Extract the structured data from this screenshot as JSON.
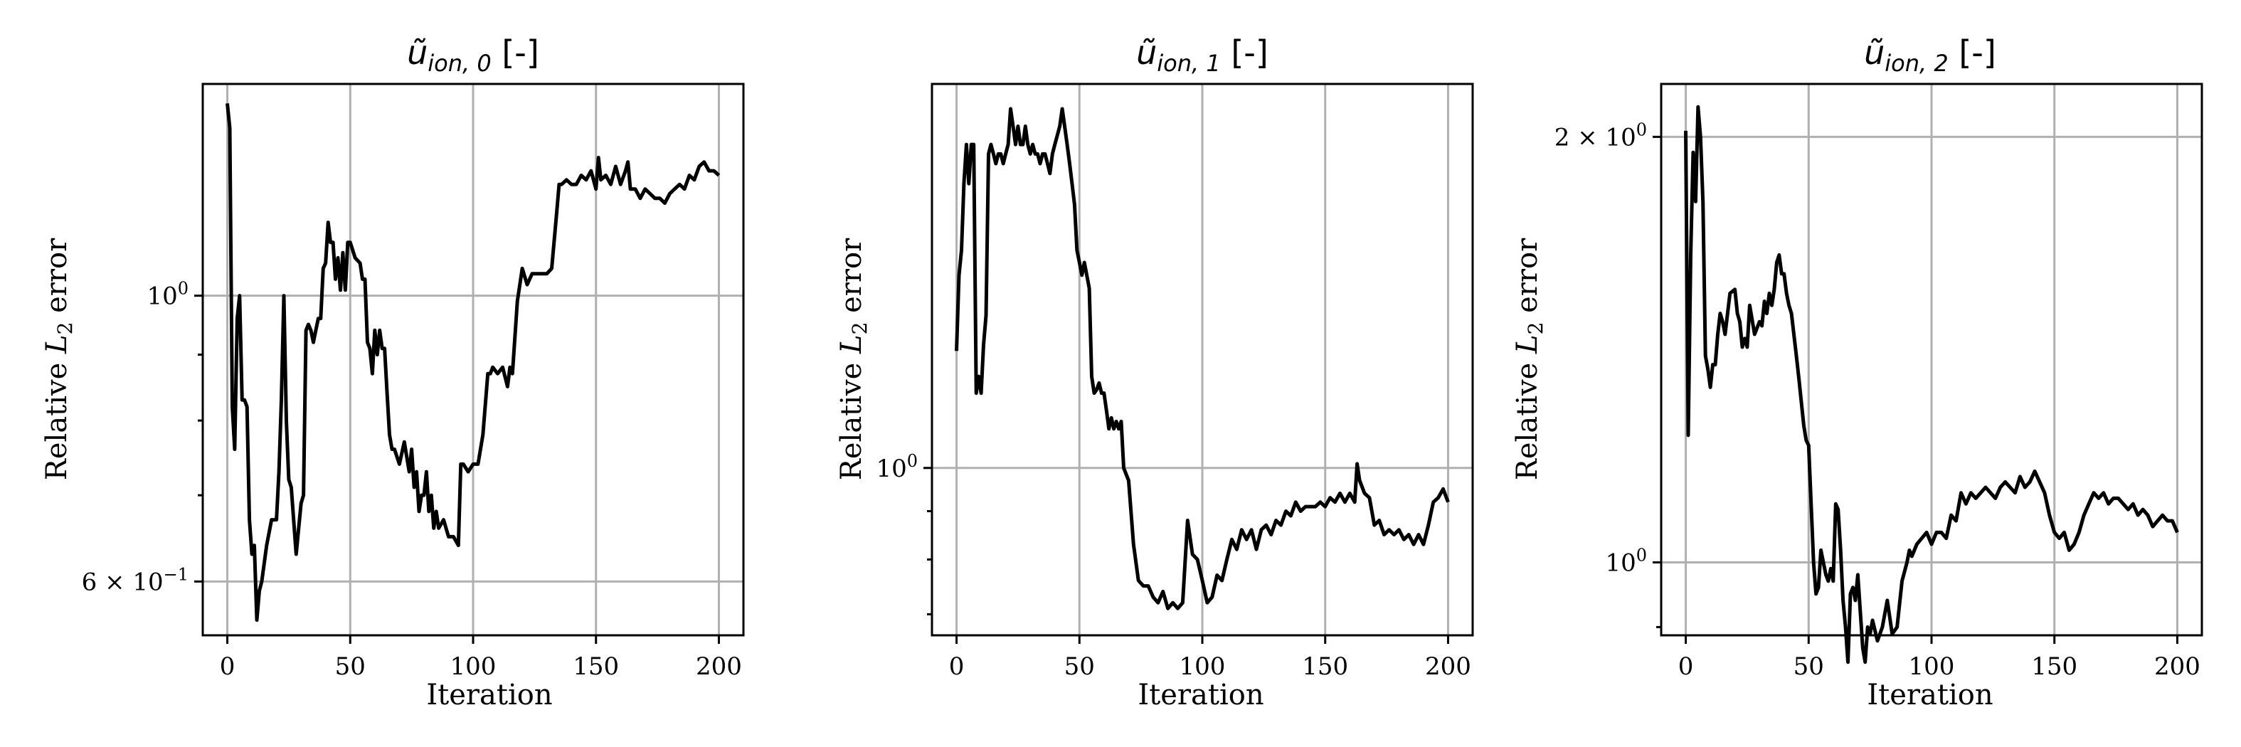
{
  "chart_data": [
    {
      "type": "line",
      "title_main": "ũ",
      "title_sub": "ion, 0",
      "title_suffix": " [-]",
      "xlabel": "Iteration",
      "ylabel_main": "Relative ",
      "ylabel_var": "L",
      "ylabel_sub": "2",
      "ylabel_suffix": " error",
      "yscale": "log",
      "xlim": [
        -10,
        210
      ],
      "ylim": [
        0.545,
        1.46
      ],
      "x_ticks": [
        0,
        50,
        100,
        150,
        200
      ],
      "x_tick_labels": [
        "0",
        "50",
        "100",
        "150",
        "200"
      ],
      "y_major_ticks": [
        {
          "value": 1.0,
          "base": "10",
          "exp": "0"
        },
        {
          "value": 0.6,
          "base": "6 × 10",
          "exp": "−1"
        }
      ],
      "y_minor_ticks": [
        0.7,
        0.8,
        0.9
      ],
      "series": [
        {
          "name": "relative_error",
          "x": [
            0,
            1,
            2,
            3,
            4,
            5,
            6,
            7,
            8,
            9,
            10,
            11,
            12,
            13,
            14,
            16,
            18,
            20,
            21,
            22,
            23,
            24,
            25,
            26,
            28,
            30,
            31,
            32,
            33,
            34,
            35,
            36,
            37,
            38,
            39,
            40,
            41,
            42,
            43,
            44,
            45,
            46,
            47,
            48,
            49,
            50,
            52,
            54,
            55,
            56,
            57,
            58,
            59,
            60,
            61,
            62,
            63,
            64,
            65,
            66,
            67,
            68,
            70,
            72,
            74,
            75,
            76,
            77,
            78,
            79,
            80,
            81,
            82,
            83,
            84,
            85,
            86,
            88,
            90,
            92,
            94,
            95,
            96,
            98,
            100,
            102,
            104,
            106,
            107,
            108,
            110,
            112,
            114,
            115,
            116,
            118,
            120,
            122,
            124,
            126,
            128,
            130,
            132,
            134,
            135,
            136,
            138,
            140,
            142,
            144,
            146,
            148,
            150,
            151,
            152,
            154,
            156,
            158,
            160,
            162,
            163,
            164,
            166,
            168,
            170,
            172,
            174,
            176,
            178,
            180,
            182,
            184,
            186,
            188,
            190,
            192,
            194,
            196,
            198,
            200
          ],
          "values": [
            1.41,
            1.35,
            0.82,
            0.76,
            0.96,
            1.0,
            0.83,
            0.83,
            0.82,
            0.67,
            0.63,
            0.64,
            0.56,
            0.59,
            0.6,
            0.64,
            0.67,
            0.67,
            0.73,
            0.83,
            1.0,
            0.8,
            0.72,
            0.71,
            0.63,
            0.69,
            0.7,
            0.94,
            0.95,
            0.94,
            0.92,
            0.94,
            0.96,
            0.96,
            1.05,
            1.06,
            1.14,
            1.1,
            1.1,
            1.03,
            1.07,
            1.01,
            1.08,
            1.01,
            1.1,
            1.1,
            1.07,
            1.06,
            1.03,
            1.03,
            0.92,
            0.91,
            0.87,
            0.94,
            0.9,
            0.94,
            0.91,
            0.91,
            0.84,
            0.78,
            0.76,
            0.76,
            0.74,
            0.77,
            0.73,
            0.76,
            0.71,
            0.73,
            0.68,
            0.7,
            0.7,
            0.73,
            0.68,
            0.7,
            0.66,
            0.68,
            0.66,
            0.67,
            0.65,
            0.65,
            0.64,
            0.74,
            0.74,
            0.73,
            0.74,
            0.74,
            0.78,
            0.87,
            0.87,
            0.88,
            0.87,
            0.88,
            0.85,
            0.88,
            0.87,
            0.99,
            1.05,
            1.02,
            1.04,
            1.04,
            1.04,
            1.04,
            1.05,
            1.16,
            1.22,
            1.22,
            1.23,
            1.22,
            1.22,
            1.24,
            1.23,
            1.25,
            1.21,
            1.28,
            1.23,
            1.24,
            1.22,
            1.26,
            1.22,
            1.25,
            1.27,
            1.21,
            1.21,
            1.19,
            1.21,
            1.2,
            1.19,
            1.19,
            1.18,
            1.2,
            1.21,
            1.22,
            1.21,
            1.24,
            1.23,
            1.26,
            1.27,
            1.25,
            1.25,
            1.24
          ]
        }
      ]
    },
    {
      "type": "line",
      "title_main": "ũ",
      "title_sub": "ion, 1",
      "title_suffix": " [-]",
      "xlabel": "Iteration",
      "ylabel_main": "Relative ",
      "ylabel_var": "L",
      "ylabel_sub": "2",
      "ylabel_suffix": " error",
      "yscale": "log",
      "xlim": [
        -10,
        210
      ],
      "ylim": [
        0.665,
        2.55
      ],
      "x_ticks": [
        0,
        50,
        100,
        150,
        200
      ],
      "x_tick_labels": [
        "0",
        "50",
        "100",
        "150",
        "200"
      ],
      "y_major_ticks": [
        {
          "value": 1.0,
          "base": "10",
          "exp": "0"
        }
      ],
      "y_minor_ticks": [
        0.7,
        0.8,
        0.9
      ],
      "series": [
        {
          "name": "relative_error",
          "x": [
            0,
            1,
            2,
            3,
            4,
            5,
            6,
            7,
            8,
            9,
            10,
            11,
            12,
            13,
            14,
            15,
            16,
            17,
            18,
            19,
            20,
            21,
            22,
            23,
            24,
            25,
            26,
            27,
            28,
            29,
            30,
            31,
            32,
            33,
            34,
            35,
            36,
            37,
            38,
            39,
            40,
            41,
            42,
            43,
            44,
            45,
            46,
            47,
            48,
            49,
            50,
            51,
            52,
            53,
            54,
            55,
            56,
            57,
            58,
            59,
            60,
            61,
            62,
            63,
            64,
            65,
            66,
            67,
            68,
            70,
            72,
            74,
            76,
            78,
            80,
            82,
            84,
            86,
            88,
            90,
            92,
            94,
            96,
            98,
            100,
            102,
            104,
            106,
            108,
            110,
            112,
            114,
            116,
            118,
            120,
            122,
            124,
            126,
            128,
            130,
            132,
            134,
            136,
            138,
            140,
            142,
            144,
            146,
            148,
            150,
            152,
            154,
            156,
            158,
            160,
            162,
            163,
            164,
            166,
            168,
            170,
            172,
            174,
            176,
            178,
            180,
            182,
            184,
            186,
            188,
            190,
            192,
            194,
            196,
            198,
            200
          ],
          "values": [
            1.33,
            1.6,
            1.7,
            2.0,
            2.2,
            2.0,
            2.2,
            2.2,
            1.2,
            1.25,
            1.2,
            1.35,
            1.45,
            2.15,
            2.2,
            2.15,
            2.1,
            2.15,
            2.15,
            2.1,
            2.15,
            2.2,
            2.4,
            2.3,
            2.2,
            2.3,
            2.2,
            2.2,
            2.3,
            2.2,
            2.15,
            2.2,
            2.15,
            2.15,
            2.1,
            2.15,
            2.15,
            2.1,
            2.05,
            2.15,
            2.2,
            2.25,
            2.3,
            2.4,
            2.3,
            2.2,
            2.1,
            2.0,
            1.9,
            1.7,
            1.65,
            1.6,
            1.65,
            1.6,
            1.55,
            1.25,
            1.2,
            1.21,
            1.23,
            1.2,
            1.2,
            1.15,
            1.1,
            1.13,
            1.1,
            1.12,
            1.1,
            1.12,
            1.0,
            0.97,
            0.83,
            0.76,
            0.75,
            0.75,
            0.73,
            0.72,
            0.74,
            0.71,
            0.72,
            0.71,
            0.72,
            0.88,
            0.81,
            0.8,
            0.76,
            0.72,
            0.73,
            0.77,
            0.76,
            0.8,
            0.84,
            0.82,
            0.86,
            0.84,
            0.86,
            0.82,
            0.86,
            0.87,
            0.85,
            0.88,
            0.87,
            0.9,
            0.89,
            0.92,
            0.9,
            0.91,
            0.91,
            0.91,
            0.92,
            0.91,
            0.93,
            0.92,
            0.94,
            0.92,
            0.94,
            0.92,
            1.01,
            0.97,
            0.94,
            0.93,
            0.87,
            0.88,
            0.85,
            0.86,
            0.85,
            0.86,
            0.84,
            0.85,
            0.83,
            0.85,
            0.83,
            0.87,
            0.92,
            0.93,
            0.95,
            0.92
          ]
        }
      ]
    },
    {
      "type": "line",
      "title_main": "ũ",
      "title_sub": "ion, 2",
      "title_suffix": " [-]",
      "xlabel": "Iteration",
      "ylabel_main": "Relative ",
      "ylabel_var": "L",
      "ylabel_sub": "2",
      "ylabel_suffix": " error",
      "yscale": "log",
      "xlim": [
        -10,
        210
      ],
      "ylim": [
        0.888,
        2.18
      ],
      "x_ticks": [
        0,
        50,
        100,
        150,
        200
      ],
      "x_tick_labels": [
        "0",
        "50",
        "100",
        "150",
        "200"
      ],
      "y_major_ticks": [
        {
          "value": 1.0,
          "base": "10",
          "exp": "0"
        },
        {
          "value": 2.0,
          "base": "2 × 10",
          "exp": "0"
        }
      ],
      "y_minor_ticks": [
        0.9
      ],
      "series": [
        {
          "name": "relative_error",
          "x": [
            0,
            1,
            2,
            3,
            4,
            5,
            6,
            7,
            8,
            9,
            10,
            11,
            12,
            13,
            14,
            15,
            16,
            18,
            20,
            21,
            22,
            23,
            24,
            25,
            26,
            28,
            30,
            31,
            32,
            33,
            34,
            35,
            36,
            37,
            38,
            39,
            40,
            41,
            42,
            43,
            44,
            45,
            46,
            48,
            49,
            50,
            52,
            53,
            54,
            55,
            56,
            57,
            58,
            59,
            60,
            61,
            62,
            63,
            64,
            65,
            66,
            67,
            68,
            69,
            70,
            72,
            73,
            74,
            75,
            76,
            78,
            80,
            82,
            84,
            86,
            88,
            90,
            91,
            92,
            94,
            96,
            98,
            100,
            102,
            104,
            106,
            108,
            110,
            112,
            114,
            116,
            118,
            120,
            122,
            124,
            126,
            128,
            130,
            132,
            134,
            136,
            138,
            140,
            142,
            144,
            146,
            148,
            150,
            152,
            154,
            156,
            158,
            160,
            162,
            164,
            166,
            168,
            170,
            172,
            174,
            176,
            178,
            180,
            182,
            184,
            186,
            188,
            190,
            192,
            194,
            196,
            198,
            200
          ],
          "values": [
            2.02,
            1.23,
            1.65,
            1.95,
            1.8,
            2.1,
            2.0,
            1.8,
            1.4,
            1.37,
            1.33,
            1.38,
            1.38,
            1.45,
            1.5,
            1.48,
            1.45,
            1.55,
            1.56,
            1.5,
            1.48,
            1.42,
            1.44,
            1.42,
            1.52,
            1.45,
            1.48,
            1.47,
            1.53,
            1.5,
            1.55,
            1.52,
            1.56,
            1.63,
            1.65,
            1.6,
            1.6,
            1.55,
            1.52,
            1.5,
            1.45,
            1.4,
            1.35,
            1.25,
            1.22,
            1.21,
            1.0,
            0.95,
            0.96,
            1.02,
            1.0,
            0.98,
            0.97,
            0.99,
            0.97,
            1.1,
            1.09,
            1.02,
            0.94,
            0.9,
            0.85,
            0.95,
            0.96,
            0.94,
            0.98,
            0.87,
            0.85,
            0.9,
            0.89,
            0.91,
            0.88,
            0.9,
            0.94,
            0.89,
            0.9,
            0.97,
            1.0,
            1.02,
            1.01,
            1.03,
            1.04,
            1.05,
            1.03,
            1.05,
            1.05,
            1.04,
            1.08,
            1.07,
            1.12,
            1.1,
            1.12,
            1.11,
            1.12,
            1.13,
            1.12,
            1.11,
            1.13,
            1.14,
            1.13,
            1.12,
            1.15,
            1.13,
            1.14,
            1.16,
            1.14,
            1.12,
            1.08,
            1.05,
            1.04,
            1.05,
            1.02,
            1.03,
            1.05,
            1.08,
            1.1,
            1.12,
            1.11,
            1.12,
            1.1,
            1.11,
            1.11,
            1.1,
            1.09,
            1.1,
            1.08,
            1.09,
            1.08,
            1.06,
            1.07,
            1.08,
            1.07,
            1.07,
            1.05
          ]
        }
      ]
    }
  ]
}
